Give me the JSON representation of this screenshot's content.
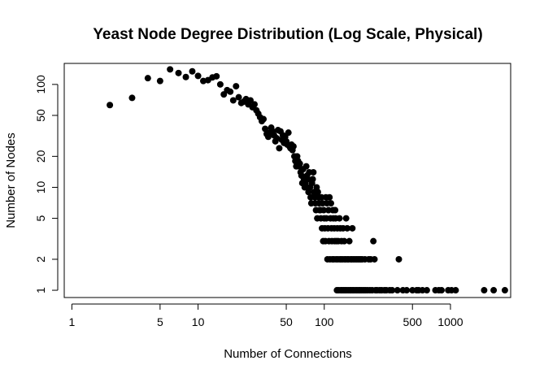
{
  "chart_data": {
    "type": "scatter",
    "title": "Yeast Node Degree Distribution (Log Scale, Physical)",
    "xlabel": "Number of Connections",
    "ylabel": "Number of Nodes",
    "xscale": "log",
    "yscale": "log",
    "xlim": [
      0.87,
      3000
    ],
    "ylim": [
      0.85,
      160
    ],
    "xticks": [
      1,
      5,
      10,
      50,
      100,
      500,
      1000
    ],
    "xtick_labels": [
      "1",
      "5",
      "10",
      "50",
      "100",
      "500",
      "1000"
    ],
    "yticks": [
      1,
      2,
      5,
      10,
      20,
      50,
      100
    ],
    "ytick_labels": [
      "1",
      "2",
      "5",
      "10",
      "20",
      "50",
      "100"
    ],
    "grid": false,
    "marker": "filled-circle",
    "marker_color": "#000000",
    "points": [
      [
        2,
        63
      ],
      [
        3,
        74
      ],
      [
        4,
        115
      ],
      [
        5,
        108
      ],
      [
        6,
        140
      ],
      [
        7,
        129
      ],
      [
        8,
        118
      ],
      [
        9,
        134
      ],
      [
        10,
        121
      ],
      [
        11,
        108
      ],
      [
        12,
        110
      ],
      [
        13,
        117
      ],
      [
        14,
        120
      ],
      [
        15,
        100
      ],
      [
        16,
        80
      ],
      [
        17,
        88
      ],
      [
        18,
        85
      ],
      [
        19,
        70
      ],
      [
        20,
        96
      ],
      [
        21,
        75
      ],
      [
        22,
        66
      ],
      [
        23,
        68
      ],
      [
        24,
        72
      ],
      [
        25,
        64
      ],
      [
        26,
        70
      ],
      [
        27,
        60
      ],
      [
        28,
        64
      ],
      [
        29,
        56
      ],
      [
        30,
        52
      ],
      [
        31,
        48
      ],
      [
        32,
        44
      ],
      [
        33,
        46
      ],
      [
        34,
        37
      ],
      [
        35,
        33
      ],
      [
        36,
        31
      ],
      [
        37,
        34
      ],
      [
        38,
        38
      ],
      [
        39,
        35
      ],
      [
        40,
        32
      ],
      [
        41,
        28
      ],
      [
        42,
        30
      ],
      [
        43,
        36
      ],
      [
        44,
        24
      ],
      [
        45,
        35
      ],
      [
        46,
        29
      ],
      [
        47,
        32
      ],
      [
        48,
        27
      ],
      [
        49,
        31
      ],
      [
        50,
        28
      ],
      [
        51,
        26
      ],
      [
        52,
        34
      ],
      [
        53,
        25
      ],
      [
        54,
        24
      ],
      [
        55,
        26
      ],
      [
        56,
        23
      ],
      [
        57,
        25
      ],
      [
        58,
        20
      ],
      [
        59,
        18
      ],
      [
        60,
        16
      ],
      [
        61,
        20
      ],
      [
        62,
        18
      ],
      [
        63,
        16
      ],
      [
        64,
        17
      ],
      [
        65,
        14
      ],
      [
        66,
        13
      ],
      [
        67,
        11
      ],
      [
        68,
        15
      ],
      [
        69,
        12
      ],
      [
        70,
        10
      ],
      [
        71,
        11
      ],
      [
        72,
        16
      ],
      [
        73,
        13
      ],
      [
        74,
        12
      ],
      [
        75,
        9
      ],
      [
        76,
        14
      ],
      [
        77,
        10
      ],
      [
        78,
        8
      ],
      [
        79,
        7
      ],
      [
        80,
        11
      ],
      [
        81,
        12
      ],
      [
        82,
        14
      ],
      [
        83,
        9
      ],
      [
        84,
        8
      ],
      [
        85,
        7
      ],
      [
        86,
        6
      ],
      [
        87,
        10
      ],
      [
        88,
        5
      ],
      [
        89,
        9
      ],
      [
        90,
        8
      ],
      [
        91,
        7
      ],
      [
        92,
        6
      ],
      [
        93,
        6
      ],
      [
        94,
        5
      ],
      [
        95,
        8
      ],
      [
        96,
        4
      ],
      [
        97,
        7
      ],
      [
        98,
        3
      ],
      [
        99,
        6
      ],
      [
        100,
        5
      ],
      [
        101,
        4
      ],
      [
        102,
        3
      ],
      [
        103,
        8
      ],
      [
        104,
        5
      ],
      [
        105,
        7
      ],
      [
        106,
        2
      ],
      [
        107,
        4
      ],
      [
        108,
        6
      ],
      [
        109,
        3
      ],
      [
        110,
        8
      ],
      [
        111,
        2
      ],
      [
        112,
        5
      ],
      [
        113,
        7
      ],
      [
        114,
        4
      ],
      [
        115,
        3
      ],
      [
        116,
        2
      ],
      [
        117,
        6
      ],
      [
        118,
        5
      ],
      [
        119,
        2
      ],
      [
        120,
        4
      ],
      [
        121,
        3
      ],
      [
        122,
        6
      ],
      [
        123,
        5
      ],
      [
        124,
        2
      ],
      [
        125,
        3
      ],
      [
        126,
        1
      ],
      [
        127,
        4
      ],
      [
        128,
        2
      ],
      [
        129,
        3
      ],
      [
        130,
        1
      ],
      [
        132,
        5
      ],
      [
        133,
        2
      ],
      [
        134,
        4
      ],
      [
        135,
        1
      ],
      [
        136,
        2
      ],
      [
        137,
        3
      ],
      [
        138,
        1
      ],
      [
        140,
        2
      ],
      [
        141,
        4
      ],
      [
        142,
        1
      ],
      [
        144,
        3
      ],
      [
        145,
        2
      ],
      [
        146,
        1
      ],
      [
        148,
        2
      ],
      [
        149,
        5
      ],
      [
        150,
        1
      ],
      [
        152,
        4
      ],
      [
        153,
        2
      ],
      [
        155,
        1
      ],
      [
        156,
        2
      ],
      [
        158,
        3
      ],
      [
        160,
        1
      ],
      [
        162,
        2
      ],
      [
        163,
        1
      ],
      [
        165,
        2
      ],
      [
        167,
        4
      ],
      [
        168,
        1
      ],
      [
        170,
        2
      ],
      [
        172,
        1
      ],
      [
        175,
        2
      ],
      [
        178,
        1
      ],
      [
        180,
        2
      ],
      [
        182,
        1
      ],
      [
        185,
        2
      ],
      [
        188,
        1
      ],
      [
        190,
        2
      ],
      [
        192,
        1
      ],
      [
        195,
        2
      ],
      [
        198,
        1
      ],
      [
        200,
        2
      ],
      [
        205,
        1
      ],
      [
        210,
        2
      ],
      [
        212,
        1
      ],
      [
        220,
        1
      ],
      [
        225,
        2
      ],
      [
        230,
        1
      ],
      [
        233,
        2
      ],
      [
        240,
        1
      ],
      [
        245,
        3
      ],
      [
        250,
        2
      ],
      [
        255,
        1
      ],
      [
        262,
        1
      ],
      [
        275,
        1
      ],
      [
        285,
        1
      ],
      [
        300,
        1
      ],
      [
        310,
        1
      ],
      [
        330,
        1
      ],
      [
        345,
        1
      ],
      [
        380,
        1
      ],
      [
        390,
        2
      ],
      [
        420,
        1
      ],
      [
        450,
        1
      ],
      [
        500,
        1
      ],
      [
        540,
        1
      ],
      [
        560,
        1
      ],
      [
        600,
        1
      ],
      [
        650,
        1
      ],
      [
        760,
        1
      ],
      [
        810,
        1
      ],
      [
        850,
        1
      ],
      [
        960,
        1
      ],
      [
        1020,
        1
      ],
      [
        1100,
        1
      ],
      [
        1850,
        1
      ],
      [
        2200,
        1
      ],
      [
        2700,
        1
      ]
    ]
  }
}
